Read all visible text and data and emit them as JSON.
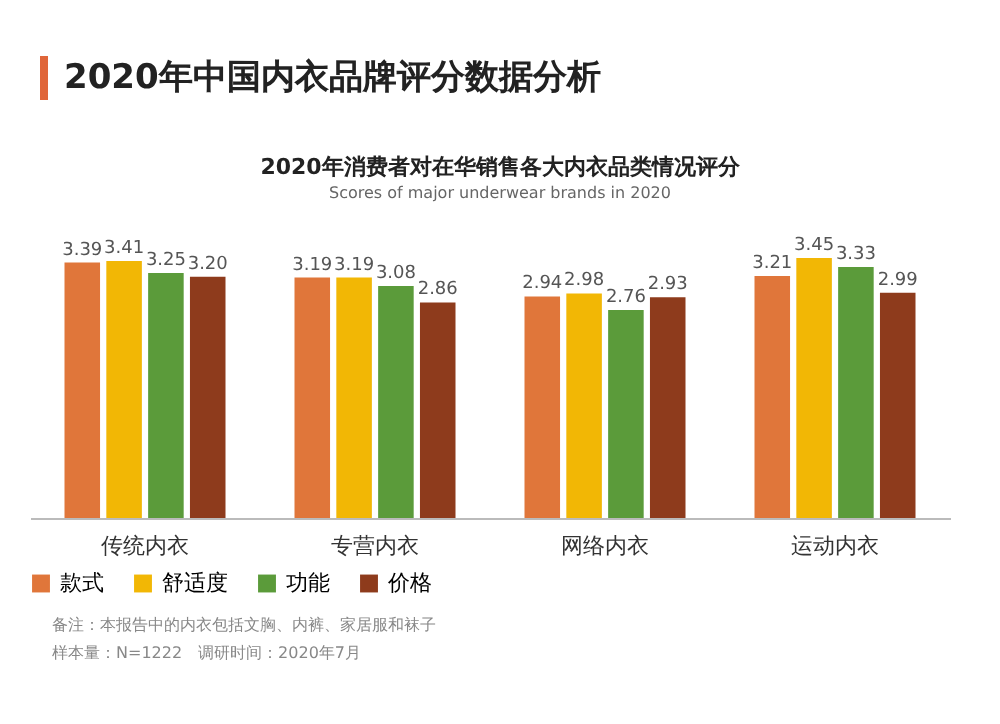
{
  "chart_data": {
    "type": "bar",
    "title": "2020年中国内衣品牌评分数据分析",
    "subtitle": "2020年消费者对在华销售各大内衣品类情况评分",
    "annotations": [
      "Scores of major underwear brands in 2020",
      "备注：本报告中的内衣包括文胸、内裤、家居服和袜子",
      "样本量：N=1222　调研时间：2020年7月"
    ],
    "categories": [
      "传统内衣",
      "专营内衣",
      "网络内衣",
      "运动内衣"
    ],
    "series": [
      {
        "name": "款式",
        "color": "#e0763a",
        "values": [
          3.39,
          3.19,
          2.94,
          3.21
        ],
        "value_labels": [
          "3.39",
          "3.19",
          "2.94",
          "3.21"
        ]
      },
      {
        "name": "舒适度",
        "color": "#f2b705",
        "values": [
          3.41,
          3.19,
          2.98,
          3.45
        ],
        "value_labels": [
          "3.41",
          "3.19",
          "2.98",
          "3.45"
        ]
      },
      {
        "name": "功能",
        "color": "#5b9b3a",
        "values": [
          3.25,
          3.08,
          2.76,
          3.33
        ],
        "value_labels": [
          "3.25",
          "3.08",
          "2.76",
          "3.33"
        ]
      },
      {
        "name": "价格",
        "color": "#8e3b1c",
        "values": [
          3.2,
          2.86,
          2.93,
          2.99
        ],
        "value_labels": [
          "3.20",
          "2.86",
          "2.93",
          "2.99"
        ]
      }
    ],
    "legend": "bottom"
  }
}
